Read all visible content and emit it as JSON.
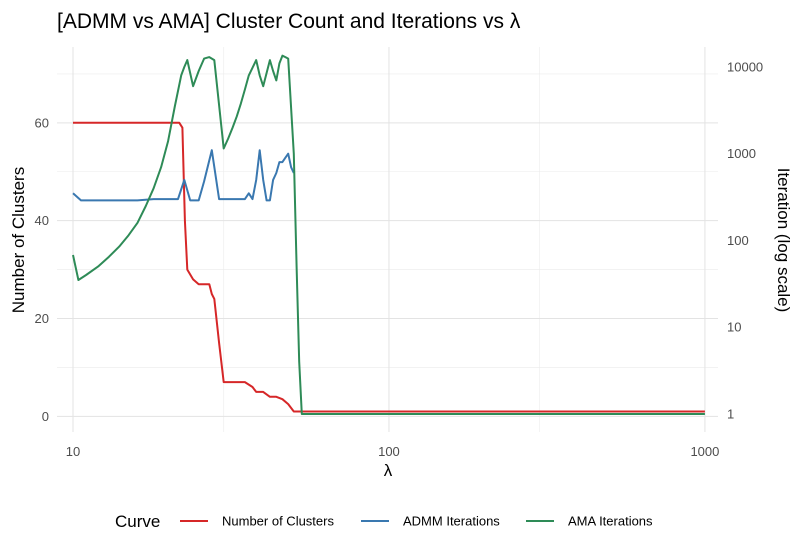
{
  "chart_data": {
    "type": "line",
    "title": "[ADMM vs AMA] Cluster Count and Iterations vs λ",
    "xlabel": "λ",
    "ylabel": "Number of Clusters",
    "y2label": "Iteration (log scale)",
    "x_scale": "log",
    "xlim": [
      8.9,
      1100
    ],
    "x_ticks": [
      10,
      100,
      1000
    ],
    "x_tick_labels": [
      "10",
      "100",
      "1000"
    ],
    "ylim": [
      -3.2,
      75.5
    ],
    "y_ticks": [
      0,
      20,
      40,
      60
    ],
    "y_tick_labels": [
      "0",
      "20",
      "40",
      "60"
    ],
    "y2_scale": "log",
    "y2lim": [
      0.62,
      17000
    ],
    "y2_ticks": [
      1,
      10,
      100,
      1000,
      10000
    ],
    "y2_tick_labels": [
      "1",
      "10",
      "100",
      "1000",
      "10000"
    ],
    "grid": true,
    "legend": {
      "title": "Curve",
      "position": "bottom"
    },
    "series": [
      {
        "name": "Number of Clusters",
        "axis": "left",
        "color": "#d62728",
        "x": [
          10,
          12,
          14,
          16,
          18,
          20,
          21.7,
          22.2,
          22.6,
          23,
          24,
          25,
          26,
          27,
          27.5,
          28,
          29,
          30,
          32,
          35,
          37,
          38,
          40,
          42,
          44,
          46,
          48,
          50,
          52,
          55,
          100,
          1000
        ],
        "y": [
          60,
          60,
          60,
          60,
          60,
          60,
          60,
          59,
          40,
          30,
          28,
          27,
          27,
          27,
          25,
          24,
          15,
          7,
          7,
          7,
          6,
          5,
          5,
          4,
          4,
          3.5,
          2.5,
          1,
          1,
          1,
          1,
          1
        ]
      },
      {
        "name": "ADMM Iterations",
        "axis": "right",
        "color": "#3a78b0",
        "x": [
          10,
          10.6,
          12,
          14,
          16,
          18,
          20,
          21.5,
          22.5,
          23.5,
          25,
          26,
          27.5,
          29,
          30,
          32,
          35,
          36,
          37,
          38,
          39,
          40,
          41,
          42,
          43,
          44,
          45,
          46,
          47,
          48,
          49,
          50
        ],
        "y": [
          350,
          290,
          290,
          290,
          290,
          300,
          300,
          300,
          500,
          290,
          290,
          480,
          1100,
          300,
          300,
          300,
          300,
          350,
          300,
          500,
          1100,
          500,
          290,
          290,
          500,
          600,
          800,
          800,
          900,
          1000,
          700,
          600
        ]
      },
      {
        "name": "AMA Iterations",
        "axis": "right",
        "color": "#2e8b57",
        "x": [
          10,
          10.4,
          11,
          12,
          13,
          14,
          15,
          16,
          17,
          18,
          19,
          20,
          21,
          22,
          22.5,
          23,
          24,
          25,
          26,
          27,
          28,
          30,
          31,
          32,
          33,
          34,
          35,
          36,
          38,
          39,
          40,
          42,
          43,
          44,
          45,
          46,
          47,
          48,
          50,
          51,
          52,
          53,
          54,
          60,
          100,
          1000
        ],
        "y": [
          68,
          35,
          40,
          50,
          65,
          85,
          115,
          160,
          250,
          400,
          700,
          1400,
          3500,
          8000,
          10000,
          12000,
          6000,
          9000,
          12500,
          13000,
          12000,
          1150,
          1500,
          2000,
          2700,
          3800,
          5500,
          8000,
          12000,
          8000,
          6000,
          12000,
          9000,
          7000,
          11000,
          13500,
          13000,
          12500,
          1000,
          50,
          4,
          1,
          1,
          1,
          1,
          1
        ]
      }
    ]
  }
}
